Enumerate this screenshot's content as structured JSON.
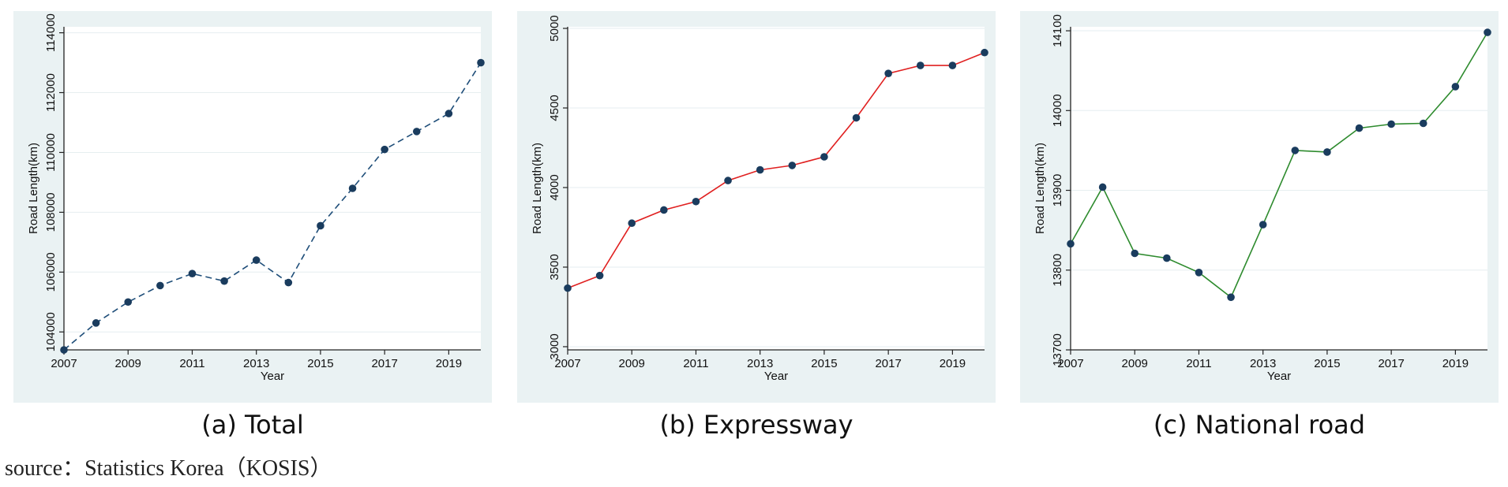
{
  "captions": [
    "(a) Total",
    "(b) Expressway",
    "(c) National road"
  ],
  "source": "source：Statistics Korea（KOSIS）",
  "chart_data": [
    {
      "type": "line",
      "xlabel": "Year",
      "ylabel": "Road Length(km)",
      "x_ticks": [
        2007,
        2009,
        2011,
        2013,
        2015,
        2017,
        2019
      ],
      "y_ticks": [
        104000,
        106000,
        108000,
        110000,
        112000,
        114000
      ],
      "xlim": [
        2007,
        2020
      ],
      "ylim": [
        103400,
        114200
      ],
      "grid": true,
      "line_color": "#1f4e79",
      "line_style": "dashed",
      "marker_color": "#1a3c5e",
      "series": [
        {
          "x": [
            2007,
            2008,
            2009,
            2010,
            2011,
            2012,
            2013,
            2014,
            2015,
            2016,
            2017,
            2018,
            2019,
            2020
          ],
          "values": [
            103400,
            104300,
            105000,
            105550,
            105950,
            105700,
            106400,
            105650,
            107550,
            108800,
            110100,
            110700,
            111300,
            113000
          ]
        }
      ]
    },
    {
      "type": "line",
      "xlabel": "Year",
      "ylabel": "Road Length(km)",
      "x_ticks": [
        2007,
        2009,
        2011,
        2013,
        2015,
        2017,
        2019
      ],
      "y_ticks": [
        3000,
        3500,
        4000,
        4500,
        5000
      ],
      "xlim": [
        2007,
        2020
      ],
      "ylim": [
        2980,
        5010
      ],
      "grid": true,
      "line_color": "#e02020",
      "line_style": "solid",
      "marker_color": "#1a3c5e",
      "series": [
        {
          "x": [
            2007,
            2008,
            2009,
            2010,
            2011,
            2012,
            2013,
            2014,
            2015,
            2016,
            2017,
            2018,
            2019,
            2020
          ],
          "values": [
            3368,
            3447,
            3776,
            3859,
            3912,
            4044,
            4111,
            4139,
            4193,
            4438,
            4717,
            4767,
            4767,
            4848
          ]
        }
      ]
    },
    {
      "type": "line",
      "xlabel": "Year",
      "ylabel": "Road Length(km)",
      "x_ticks": [
        2007,
        2009,
        2011,
        2013,
        2015,
        2017,
        2019
      ],
      "y_ticks": [
        13700,
        13800,
        13900,
        14000,
        14100
      ],
      "xlim": [
        2007,
        2020
      ],
      "ylim": [
        13700,
        14105
      ],
      "grid": true,
      "line_color": "#2e8b2e",
      "line_style": "solid",
      "marker_color": "#1a3c5e",
      "series": [
        {
          "x": [
            2007,
            2008,
            2009,
            2010,
            2011,
            2012,
            2013,
            2014,
            2015,
            2016,
            2017,
            2018,
            2019,
            2020
          ],
          "values": [
            13833,
            13904,
            13821,
            13815,
            13797,
            13766,
            13857,
            13950,
            13948,
            13978,
            13983,
            13984,
            14030,
            14098
          ]
        }
      ]
    }
  ]
}
